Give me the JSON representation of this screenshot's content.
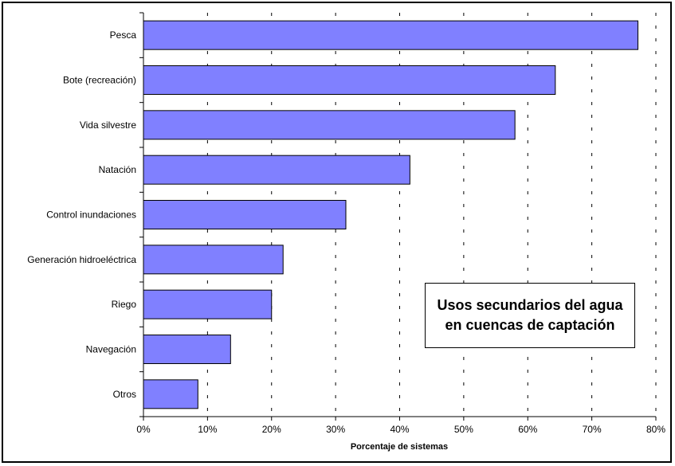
{
  "chart_data": {
    "type": "bar",
    "orientation": "horizontal",
    "title_lines": [
      "Usos secundarios del agua",
      "en cuencas de captación"
    ],
    "xlabel": "Porcentaje de sistemas",
    "ylabel": "",
    "categories": [
      "Pesca",
      "Bote (recreación)",
      "Vida silvestre",
      "Natación",
      "Control inundaciones",
      "Generación hidroeléctrica",
      "Riego",
      "Navegación",
      "Otros"
    ],
    "values": [
      77.2,
      64.3,
      58.0,
      41.6,
      31.6,
      21.8,
      20.0,
      13.6,
      8.5
    ],
    "xlim": [
      0,
      80
    ],
    "xticks": [
      "0%",
      "10%",
      "20%",
      "30%",
      "40%",
      "50%",
      "60%",
      "70%",
      "80%"
    ],
    "grid": "vertical-dashed",
    "bar_color": "#8080ff",
    "bar_edge_color": "#000000"
  }
}
